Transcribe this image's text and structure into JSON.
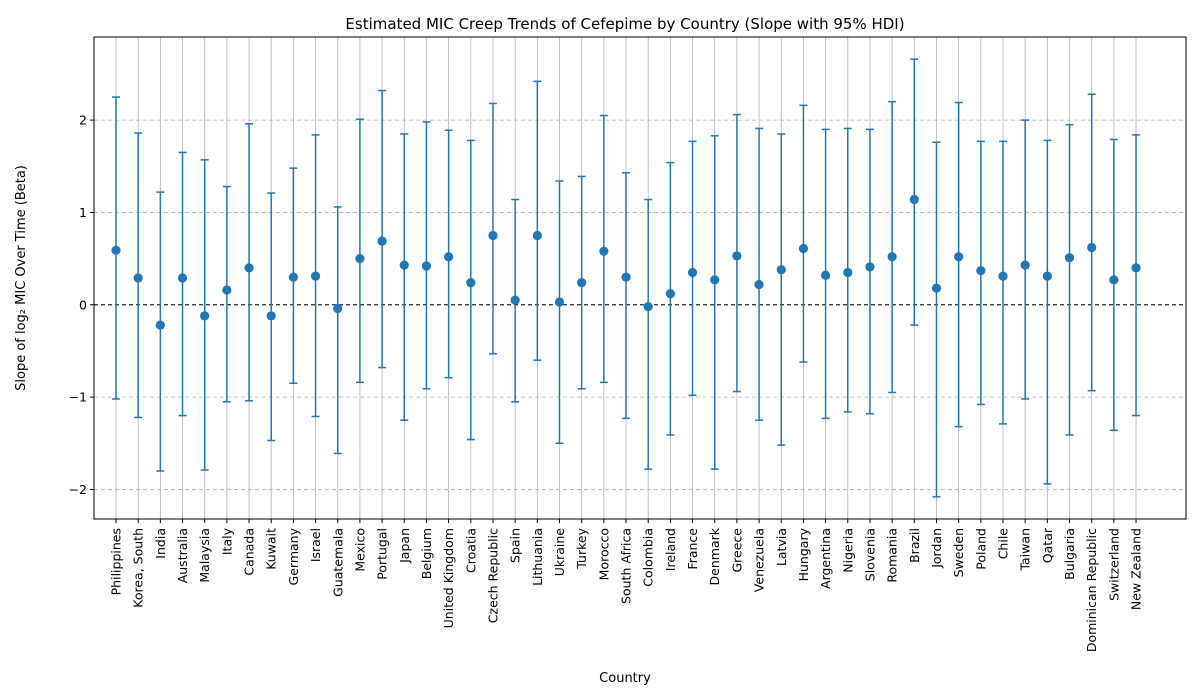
{
  "chart_data": {
    "type": "scatter",
    "title": "Estimated MIC Creep Trends of Cefepime by Country (Slope with 95% HDI)",
    "xlabel": "Country",
    "ylabel": "Slope of log₂ MIC Over Time (Beta)",
    "ylim": [
      -2.32,
      2.9
    ],
    "yticks": [
      -2,
      -1,
      0,
      1,
      2
    ],
    "ytick_labels": [
      "−2",
      "−1",
      "0",
      "1",
      "2"
    ],
    "grid": true,
    "reference_line_y": 0,
    "color": "#1f77b4",
    "categories": [
      "Philippines",
      "Korea, South",
      "India",
      "Australia",
      "Malaysia",
      "Italy",
      "Canada",
      "Kuwait",
      "Germany",
      "Israel",
      "Guatemala",
      "Mexico",
      "Portugal",
      "Japan",
      "Belgium",
      "United Kingdom",
      "Croatia",
      "Czech Republic",
      "Spain",
      "Lithuania",
      "Ukraine",
      "Turkey",
      "Morocco",
      "South Africa",
      "Colombia",
      "Ireland",
      "France",
      "Denmark",
      "Greece",
      "Venezuela",
      "Latvia",
      "Hungary",
      "Argentina",
      "Nigeria",
      "Slovenia",
      "Romania",
      "Brazil",
      "Jordan",
      "Sweden",
      "Poland",
      "Chile",
      "Taiwan",
      "Qatar",
      "Bulgaria",
      "Dominican Republic",
      "Switzerland",
      "New Zealand"
    ],
    "values": [
      0.59,
      0.29,
      -0.22,
      0.29,
      -0.12,
      0.16,
      0.4,
      -0.12,
      0.3,
      0.31,
      -0.04,
      0.5,
      0.69,
      0.43,
      0.42,
      0.52,
      0.24,
      0.75,
      0.05,
      0.75,
      0.03,
      0.24,
      0.58,
      0.3,
      -0.02,
      0.12,
      0.35,
      0.27,
      0.53,
      0.22,
      0.38,
      0.61,
      0.32,
      0.35,
      0.41,
      0.52,
      1.14,
      0.18,
      0.52,
      0.37,
      0.31,
      0.43,
      0.31,
      0.51,
      0.62,
      0.27,
      0.4
    ],
    "lower": [
      -1.02,
      -1.22,
      -1.8,
      -1.2,
      -1.79,
      -1.05,
      -1.04,
      -1.47,
      -0.85,
      -1.21,
      -1.61,
      -0.84,
      -0.68,
      -1.25,
      -0.91,
      -0.79,
      -1.46,
      -0.53,
      -1.05,
      -0.6,
      -1.5,
      -0.91,
      -0.84,
      -1.23,
      -1.78,
      -1.41,
      -0.98,
      -1.78,
      -0.94,
      -1.25,
      -1.52,
      -0.62,
      -1.23,
      -1.16,
      -1.18,
      -0.95,
      -0.22,
      -2.08,
      -1.32,
      -1.08,
      -1.29,
      -1.02,
      -1.94,
      -1.41,
      -0.93,
      -1.36,
      -1.2
    ],
    "upper": [
      2.25,
      1.86,
      1.22,
      1.65,
      1.57,
      1.28,
      1.96,
      1.21,
      1.48,
      1.84,
      1.06,
      2.01,
      2.32,
      1.85,
      1.98,
      1.89,
      1.78,
      2.18,
      1.14,
      2.42,
      1.34,
      1.39,
      2.05,
      1.43,
      1.14,
      1.54,
      1.77,
      1.83,
      2.06,
      1.91,
      1.85,
      2.16,
      1.9,
      1.91,
      1.9,
      2.2,
      2.66,
      1.76,
      2.19,
      1.77,
      1.77,
      2.0,
      1.78,
      1.95,
      2.28,
      1.79,
      1.84
    ]
  }
}
